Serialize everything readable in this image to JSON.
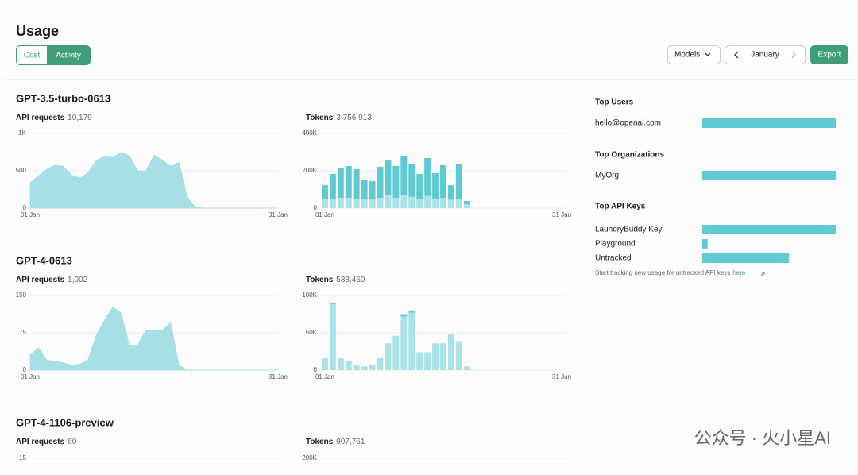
{
  "header": {
    "title": "Usage",
    "tabs": [
      "Cost",
      "Activity"
    ]
  },
  "controls": {
    "models": "Models",
    "month": "January",
    "export": "Export"
  },
  "sections": [
    {
      "title": "GPT-3.5-turbo-0613",
      "requests": {
        "label": "API requests",
        "total": "10,179",
        "chart": {
          "type": "area",
          "color": "#a6dfe6",
          "categories": [
            "01 Jan",
            null,
            null,
            null,
            null,
            null,
            null,
            null,
            null,
            null,
            null,
            null,
            null,
            null,
            null,
            null,
            null,
            null,
            null,
            null,
            null,
            null,
            null,
            null,
            null,
            null,
            null,
            null,
            null,
            null,
            "31 Jan"
          ],
          "values": [
            340,
            430,
            520,
            575,
            560,
            440,
            400,
            470,
            640,
            690,
            680,
            745,
            700,
            500,
            490,
            710,
            640,
            560,
            610,
            150,
            10,
            0,
            0,
            0,
            0,
            0,
            0,
            0,
            0,
            0,
            0
          ],
          "ylim": [
            0,
            1000
          ],
          "yticks": [
            0,
            500,
            {
              "value": 1000,
              "label": "1K"
            }
          ]
        }
      },
      "tokens": {
        "label": "Tokens",
        "total": "3,756,913",
        "chart": {
          "type": "bar",
          "categories": [
            "01 Jan",
            null,
            null,
            null,
            null,
            null,
            null,
            null,
            null,
            null,
            null,
            null,
            null,
            null,
            null,
            null,
            null,
            null,
            null,
            null,
            null,
            null,
            null,
            null,
            null,
            null,
            null,
            null,
            null,
            null,
            "31 Jan"
          ],
          "series": [
            {
              "color": "#a9e3e9",
              "values": [
                50000,
                50000,
                55000,
                55000,
                50000,
                50000,
                50000,
                55000,
                70000,
                55000,
                70000,
                60000,
                50000,
                65000,
                50000,
                55000,
                45000,
                50000,
                20000,
                0,
                0,
                0,
                0,
                0,
                0,
                0,
                0,
                0,
                0,
                0,
                0
              ]
            },
            {
              "color": "#5fcad4",
              "values": [
                73000,
                133000,
                158000,
                171000,
                159000,
                103000,
                95000,
                166000,
                185000,
                171000,
                211000,
                178000,
                133000,
                203000,
                137000,
                175000,
                78000,
                184000,
                18000,
                0,
                0,
                0,
                0,
                0,
                0,
                0,
                0,
                0,
                0,
                0,
                0
              ]
            }
          ],
          "ylim": [
            0,
            400000
          ],
          "yticks": [
            0,
            {
              "value": 200000,
              "label": "200K"
            },
            {
              "value": 400000,
              "label": "400K"
            }
          ]
        }
      }
    },
    {
      "title": "GPT-4-0613",
      "requests": {
        "label": "API requests",
        "total": "1,002",
        "chart": {
          "type": "area",
          "color": "#a6dfe6",
          "categories": [
            "01 Jan",
            null,
            null,
            null,
            null,
            null,
            null,
            null,
            null,
            null,
            null,
            null,
            null,
            null,
            null,
            null,
            null,
            null,
            null,
            null,
            null,
            null,
            null,
            null,
            null,
            null,
            null,
            null,
            null,
            null,
            "31 Jan"
          ],
          "values": [
            30,
            45,
            20,
            18,
            15,
            10,
            12,
            20,
            70,
            100,
            127,
            115,
            50,
            50,
            80,
            80,
            80,
            95,
            10,
            0,
            0,
            0,
            0,
            0,
            0,
            0,
            0,
            0,
            0,
            0,
            0
          ],
          "ylim": [
            0,
            150
          ],
          "yticks": [
            0,
            75,
            150
          ]
        }
      },
      "tokens": {
        "label": "Tokens",
        "total": "588,460",
        "chart": {
          "type": "bar",
          "categories": [
            "01 Jan",
            null,
            null,
            null,
            null,
            null,
            null,
            null,
            null,
            null,
            null,
            null,
            null,
            null,
            null,
            null,
            null,
            null,
            null,
            null,
            null,
            null,
            null,
            null,
            null,
            null,
            null,
            null,
            null,
            null,
            "31 Jan"
          ],
          "series": [
            {
              "color": "#a9e3e9",
              "values": [
                16000,
                88000,
                16000,
                13000,
                7000,
                5000,
                7000,
                16000,
                36000,
                46000,
                72000,
                77000,
                24000,
                24000,
                36000,
                36000,
                48000,
                39000,
                5000,
                0,
                0,
                0,
                0,
                0,
                0,
                0,
                0,
                0,
                0,
                0,
                0
              ]
            },
            {
              "color": "#5fcad4",
              "values": [
                0,
                2000,
                0,
                0,
                0,
                0,
                0,
                0,
                0,
                0,
                3000,
                3000,
                0,
                0,
                0,
                0,
                0,
                0,
                0,
                0,
                0,
                0,
                0,
                0,
                0,
                0,
                0,
                0,
                0,
                0,
                0
              ]
            }
          ],
          "ylim": [
            0,
            100000
          ],
          "yticks": [
            0,
            {
              "value": 50000,
              "label": "50K"
            },
            {
              "value": 100000,
              "label": "100K"
            }
          ]
        }
      }
    },
    {
      "title": "GPT-4-1106-preview",
      "requests": {
        "label": "API requests",
        "total": "60",
        "chart": {
          "type": "area",
          "yticks": [
            15
          ]
        }
      },
      "tokens": {
        "label": "Tokens",
        "total": "907,761",
        "chart": {
          "type": "bar",
          "yticks": [
            {
              "value": 200000,
              "label": "200K"
            }
          ]
        }
      }
    }
  ],
  "side": {
    "groups": [
      {
        "title": "Top Users",
        "rows": [
          {
            "label": "hello@openai.com",
            "share": 100
          }
        ]
      },
      {
        "title": "Top Organizations",
        "rows": [
          {
            "label": "MyOrg",
            "share": 100
          }
        ]
      },
      {
        "title": "Top API Keys",
        "rows": [
          {
            "label": "LaundryBuddy Key",
            "share": 100
          },
          {
            "label": "Playground",
            "share": 4
          },
          {
            "label": "Untracked",
            "share": 65
          }
        ]
      }
    ],
    "note": {
      "text": "Start tracking new usage for untracked API keys",
      "link": "here"
    }
  },
  "watermark": "公众号 · 火小星AI"
}
